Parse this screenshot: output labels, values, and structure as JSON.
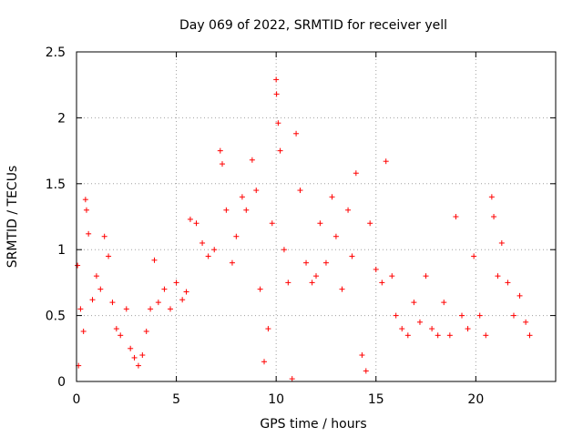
{
  "chart_data": {
    "type": "scatter",
    "title": "Day 069 of 2022, SRMTID for receiver yell",
    "xlabel": "GPS time / hours",
    "ylabel": "SRMTID / TECUs",
    "xlim": [
      0,
      24
    ],
    "ylim": [
      0,
      2.5
    ],
    "x_ticks": [
      0,
      5,
      10,
      15,
      20
    ],
    "y_ticks": [
      0,
      0.5,
      1,
      1.5,
      2,
      2.5
    ],
    "x_tick_labels": [
      "0",
      "5",
      "10",
      "15",
      "20"
    ],
    "y_tick_labels": [
      "0",
      "0.5",
      "1",
      "1.5",
      "2",
      "2.5"
    ],
    "grid": true,
    "marker": "+",
    "series": [
      {
        "name": "SRMTID",
        "color": "#ff0000",
        "x_range": [
          0,
          22.7
        ],
        "values": [
          [
            0.05,
            0.88
          ],
          [
            0.1,
            0.12
          ],
          [
            0.2,
            0.55
          ],
          [
            0.35,
            0.38
          ],
          [
            0.45,
            1.38
          ],
          [
            0.5,
            1.3
          ],
          [
            0.6,
            1.12
          ],
          [
            0.8,
            0.62
          ],
          [
            1.0,
            0.8
          ],
          [
            1.2,
            0.7
          ],
          [
            1.4,
            1.1
          ],
          [
            1.6,
            0.95
          ],
          [
            1.8,
            0.6
          ],
          [
            2.0,
            0.4
          ],
          [
            2.2,
            0.35
          ],
          [
            2.5,
            0.55
          ],
          [
            2.7,
            0.25
          ],
          [
            2.9,
            0.18
          ],
          [
            3.1,
            0.12
          ],
          [
            3.3,
            0.2
          ],
          [
            3.5,
            0.38
          ],
          [
            3.7,
            0.55
          ],
          [
            3.9,
            0.92
          ],
          [
            4.1,
            0.6
          ],
          [
            4.4,
            0.7
          ],
          [
            4.7,
            0.55
          ],
          [
            5.0,
            0.75
          ],
          [
            5.3,
            0.62
          ],
          [
            5.5,
            0.68
          ],
          [
            5.7,
            1.23
          ],
          [
            6.0,
            1.2
          ],
          [
            6.3,
            1.05
          ],
          [
            6.6,
            0.95
          ],
          [
            6.9,
            1.0
          ],
          [
            7.2,
            1.75
          ],
          [
            7.3,
            1.65
          ],
          [
            7.5,
            1.3
          ],
          [
            7.8,
            0.9
          ],
          [
            8.0,
            1.1
          ],
          [
            8.3,
            1.4
          ],
          [
            8.5,
            1.3
          ],
          [
            8.8,
            1.68
          ],
          [
            9.0,
            1.45
          ],
          [
            9.2,
            0.7
          ],
          [
            9.4,
            0.15
          ],
          [
            9.6,
            0.4
          ],
          [
            9.8,
            1.2
          ],
          [
            10.0,
            2.29
          ],
          [
            10.02,
            2.18
          ],
          [
            10.1,
            1.96
          ],
          [
            10.2,
            1.75
          ],
          [
            10.4,
            1.0
          ],
          [
            10.6,
            0.75
          ],
          [
            10.8,
            0.02
          ],
          [
            11.0,
            1.88
          ],
          [
            11.2,
            1.45
          ],
          [
            11.5,
            0.9
          ],
          [
            11.8,
            0.75
          ],
          [
            12.0,
            0.8
          ],
          [
            12.2,
            1.2
          ],
          [
            12.5,
            0.9
          ],
          [
            12.8,
            1.4
          ],
          [
            13.0,
            1.1
          ],
          [
            13.3,
            0.7
          ],
          [
            13.6,
            1.3
          ],
          [
            13.8,
            0.95
          ],
          [
            14.0,
            1.58
          ],
          [
            14.3,
            0.2
          ],
          [
            14.5,
            0.08
          ],
          [
            14.7,
            1.2
          ],
          [
            15.0,
            0.85
          ],
          [
            15.3,
            0.75
          ],
          [
            15.5,
            1.67
          ],
          [
            15.8,
            0.8
          ],
          [
            16.0,
            0.5
          ],
          [
            16.3,
            0.4
          ],
          [
            16.6,
            0.35
          ],
          [
            16.9,
            0.6
          ],
          [
            17.2,
            0.45
          ],
          [
            17.5,
            0.8
          ],
          [
            17.8,
            0.4
          ],
          [
            18.1,
            0.35
          ],
          [
            18.4,
            0.6
          ],
          [
            18.7,
            0.35
          ],
          [
            19.0,
            1.25
          ],
          [
            19.3,
            0.5
          ],
          [
            19.6,
            0.4
          ],
          [
            19.9,
            0.95
          ],
          [
            20.2,
            0.5
          ],
          [
            20.5,
            0.35
          ],
          [
            20.8,
            1.4
          ],
          [
            20.9,
            1.25
          ],
          [
            21.1,
            0.8
          ],
          [
            21.3,
            1.05
          ],
          [
            21.6,
            0.75
          ],
          [
            21.9,
            0.5
          ],
          [
            22.2,
            0.65
          ],
          [
            22.5,
            0.45
          ],
          [
            22.7,
            0.35
          ]
        ]
      }
    ]
  }
}
